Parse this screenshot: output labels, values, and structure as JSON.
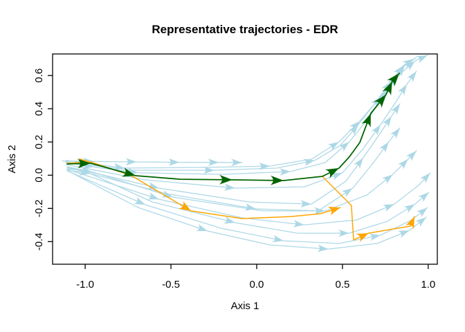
{
  "chart_data": {
    "type": "line",
    "title": "Representative trajectories - EDR",
    "xlabel": "Axis 1",
    "ylabel": "Axis 2",
    "xlim": [
      -1.19,
      1.053
    ],
    "ylim": [
      -0.536,
      0.73
    ],
    "x_ticks": [
      -1.0,
      -0.5,
      0.0,
      0.5,
      1.0
    ],
    "x_tick_labels": [
      "-1.0",
      "-0.5",
      "0.0",
      "0.5",
      "1.0"
    ],
    "y_ticks": [
      -0.4,
      -0.2,
      0.0,
      0.2,
      0.4,
      0.6
    ],
    "y_tick_labels": [
      "-0.4",
      "-0.2",
      "0.0",
      "0.2",
      "0.4",
      "0.6"
    ],
    "grid": false,
    "legend_position": "none",
    "colors": {
      "background": "#FFFFFF",
      "box": "#000000",
      "trajectory_blue": "#ADD8E6",
      "representative_green": "#006400",
      "representative_orange": "#FFA500"
    },
    "series": [
      {
        "name": "trajectory-01",
        "color": "trajectory_blue",
        "width": 1.3,
        "arrow_len": 16,
        "arrow_hw": 5.5,
        "arrows": [
          1,
          2,
          3,
          4,
          5
        ],
        "points": [
          [
            -1.133,
            0.085
          ],
          [
            -0.95,
            0.083
          ],
          [
            -0.7,
            0.08
          ],
          [
            -0.45,
            0.078
          ],
          [
            -0.22,
            0.077
          ],
          [
            -0.085,
            0.076
          ]
        ]
      },
      {
        "name": "trajectory-02",
        "color": "trajectory_blue",
        "width": 1.3,
        "arrow_len": 16,
        "arrow_hw": 5.5,
        "arrows": [
          1,
          3,
          5,
          6,
          7,
          8,
          9,
          10
        ],
        "points": [
          [
            -1.113,
            0.089
          ],
          [
            -0.77,
            0.043
          ],
          [
            -0.286,
            0.047
          ],
          [
            0.077,
            0.055
          ],
          [
            0.319,
            0.097
          ],
          [
            0.48,
            0.201
          ],
          [
            0.601,
            0.326
          ],
          [
            0.722,
            0.472
          ],
          [
            0.823,
            0.597
          ],
          [
            0.923,
            0.689
          ],
          [
            0.996,
            0.722
          ]
        ]
      },
      {
        "name": "trajectory-03",
        "color": "trajectory_blue",
        "width": 1.3,
        "arrow_len": 16,
        "arrow_hw": 5.5,
        "arrows": [
          2,
          4,
          6,
          8,
          9,
          10
        ],
        "points": [
          [
            -1.113,
            0.08
          ],
          [
            -0.73,
            0.03
          ],
          [
            -0.246,
            0.03
          ],
          [
            0.117,
            0.043
          ],
          [
            0.339,
            0.089
          ],
          [
            0.488,
            0.18
          ],
          [
            0.593,
            0.305
          ],
          [
            0.694,
            0.439
          ],
          [
            0.782,
            0.564
          ],
          [
            0.855,
            0.66
          ],
          [
            0.915,
            0.701
          ]
        ]
      },
      {
        "name": "trajectory-04",
        "color": "trajectory_blue",
        "width": 1.3,
        "arrow_len": 16,
        "arrow_hw": 5.5,
        "arrows": [
          1,
          2,
          4,
          6,
          8,
          9
        ],
        "points": [
          [
            -1.113,
            0.076
          ],
          [
            -0.95,
            0.05
          ],
          [
            -0.69,
            0.014
          ],
          [
            -0.206,
            0.005
          ],
          [
            0.198,
            0.022
          ],
          [
            0.399,
            0.076
          ],
          [
            0.54,
            0.201
          ],
          [
            0.661,
            0.355
          ],
          [
            0.762,
            0.514
          ],
          [
            0.863,
            0.66
          ],
          [
            0.931,
            0.71
          ]
        ]
      },
      {
        "name": "trajectory-05",
        "color": "trajectory_blue",
        "width": 1.3,
        "arrow_len": 16,
        "arrow_hw": 5.5,
        "arrows": [
          2,
          4,
          6,
          8,
          9
        ],
        "points": [
          [
            -1.113,
            0.064
          ],
          [
            -0.649,
            -0.028
          ],
          [
            -0.125,
            -0.078
          ],
          [
            0.278,
            -0.07
          ],
          [
            0.5,
            0.014
          ],
          [
            0.621,
            0.16
          ],
          [
            0.722,
            0.305
          ],
          [
            0.81,
            0.439
          ],
          [
            0.875,
            0.547
          ],
          [
            0.931,
            0.626
          ]
        ]
      },
      {
        "name": "trajectory-06",
        "color": "trajectory_blue",
        "width": 1.3,
        "arrow_len": 16,
        "arrow_hw": 5.5,
        "arrows": [
          1,
          3,
          5,
          7,
          8
        ],
        "points": [
          [
            -1.105,
            0.051
          ],
          [
            -0.569,
            -0.078
          ],
          [
            -0.044,
            -0.161
          ],
          [
            0.319,
            -0.174
          ],
          [
            0.52,
            -0.036
          ],
          [
            0.621,
            0.105
          ],
          [
            0.714,
            0.243
          ],
          [
            0.786,
            0.355
          ],
          [
            0.835,
            0.43
          ]
        ]
      },
      {
        "name": "trajectory-07",
        "color": "trajectory_blue",
        "width": 1.3,
        "arrow_len": 16,
        "arrow_hw": 5.5,
        "arrows": [
          2,
          4,
          6,
          7
        ],
        "points": [
          [
            -1.105,
            0.047
          ],
          [
            -0.528,
            -0.111
          ],
          [
            -0.004,
            -0.203
          ],
          [
            0.359,
            -0.215
          ],
          [
            0.56,
            -0.078
          ],
          [
            0.681,
            0.076
          ],
          [
            0.77,
            0.201
          ],
          [
            0.835,
            0.285
          ]
        ]
      },
      {
        "name": "trajectory-08",
        "color": "trajectory_blue",
        "width": 1.3,
        "arrow_len": 16,
        "arrow_hw": 5.5,
        "arrows": [
          1,
          2,
          4,
          6,
          7,
          8
        ],
        "points": [
          [
            -1.105,
            0.039
          ],
          [
            -0.96,
            0.02
          ],
          [
            -0.488,
            -0.132
          ],
          [
            0.036,
            -0.215
          ],
          [
            0.399,
            -0.215
          ],
          [
            0.641,
            -0.12
          ],
          [
            0.794,
            0.005
          ],
          [
            0.883,
            0.097
          ],
          [
            0.931,
            0.147
          ]
        ]
      },
      {
        "name": "trajectory-09",
        "color": "trajectory_blue",
        "width": 1.3,
        "arrow_len": 16,
        "arrow_hw": 5.5,
        "arrows": [
          1,
          3,
          5,
          7
        ],
        "points": [
          [
            -1.105,
            0.035
          ],
          [
            -0.569,
            -0.145
          ],
          [
            -0.085,
            -0.257
          ],
          [
            0.278,
            -0.299
          ],
          [
            0.581,
            -0.27
          ],
          [
            0.802,
            -0.174
          ],
          [
            0.944,
            -0.061
          ],
          [
            1.012,
            0.014
          ]
        ]
      },
      {
        "name": "trajectory-10",
        "color": "trajectory_blue",
        "width": 1.3,
        "arrow_len": 16,
        "arrow_hw": 5.5,
        "arrows": [
          1,
          3,
          5,
          7,
          8
        ],
        "points": [
          [
            -1.105,
            0.03
          ],
          [
            -0.97,
            0.01
          ],
          [
            -0.609,
            -0.161
          ],
          [
            -0.125,
            -0.286
          ],
          [
            0.238,
            -0.349
          ],
          [
            0.54,
            -0.349
          ],
          [
            0.762,
            -0.278
          ],
          [
            0.923,
            -0.174
          ],
          [
            1.004,
            -0.103
          ]
        ]
      },
      {
        "name": "trajectory-11",
        "color": "trajectory_blue",
        "width": 1.3,
        "arrow_len": 16,
        "arrow_hw": 5.5,
        "arrows": [
          1,
          3,
          5,
          7
        ],
        "points": [
          [
            -1.105,
            0.026
          ],
          [
            -0.649,
            -0.178
          ],
          [
            -0.206,
            -0.32
          ],
          [
            0.157,
            -0.395
          ],
          [
            0.48,
            -0.411
          ],
          [
            0.722,
            -0.361
          ],
          [
            0.903,
            -0.27
          ],
          [
            0.996,
            -0.195
          ]
        ]
      },
      {
        "name": "trajectory-12",
        "color": "trajectory_blue",
        "width": 1.3,
        "arrow_len": 16,
        "arrow_hw": 5.5,
        "arrows": [
          2,
          4,
          6,
          7
        ],
        "points": [
          [
            -1.093,
            0.022
          ],
          [
            -0.69,
            -0.195
          ],
          [
            -0.286,
            -0.336
          ],
          [
            0.077,
            -0.42
          ],
          [
            0.419,
            -0.445
          ],
          [
            0.702,
            -0.411
          ],
          [
            0.891,
            -0.332
          ],
          [
            0.988,
            -0.253
          ]
        ]
      },
      {
        "name": "representative-orange-1",
        "color": "representative_orange",
        "width": 1.5,
        "arrow_len": 17,
        "arrow_hw": 6.5,
        "arrows": [
          1,
          3,
          7
        ],
        "points": [
          [
            -1.105,
            0.072
          ],
          [
            -0.968,
            0.08
          ],
          [
            -0.73,
            -0.003
          ],
          [
            -0.383,
            -0.215
          ],
          [
            -0.085,
            -0.261
          ],
          [
            0.198,
            -0.249
          ],
          [
            0.371,
            -0.232
          ],
          [
            0.488,
            -0.195
          ]
        ]
      },
      {
        "name": "representative-orange-2",
        "color": "representative_orange",
        "width": 1.5,
        "arrow_len": 17,
        "arrow_hw": 6.5,
        "arrows": [
          3,
          6
        ],
        "points": [
          [
            0.383,
            -0.007
          ],
          [
            0.552,
            -0.182
          ],
          [
            0.565,
            -0.39
          ],
          [
            0.653,
            -0.349
          ],
          [
            0.77,
            -0.328
          ],
          [
            0.895,
            -0.307
          ],
          [
            0.92,
            -0.249
          ]
        ]
      },
      {
        "name": "representative-green",
        "color": "representative_green",
        "width": 1.8,
        "arrow_len": 19,
        "arrow_hw": 7,
        "arrows": [
          1,
          2,
          4,
          5,
          7,
          10,
          11,
          12,
          13
        ],
        "points": [
          [
            -1.105,
            0.068
          ],
          [
            -0.968,
            0.072
          ],
          [
            -0.706,
            -0.003
          ],
          [
            -0.448,
            -0.024
          ],
          [
            -0.141,
            -0.028
          ],
          [
            0.157,
            -0.032
          ],
          [
            0.383,
            -0.007
          ],
          [
            0.48,
            0.043
          ],
          [
            0.54,
            0.11
          ],
          [
            0.601,
            0.197
          ],
          [
            0.665,
            0.372
          ],
          [
            0.754,
            0.485
          ],
          [
            0.79,
            0.564
          ],
          [
            0.831,
            0.614
          ]
        ]
      }
    ]
  }
}
